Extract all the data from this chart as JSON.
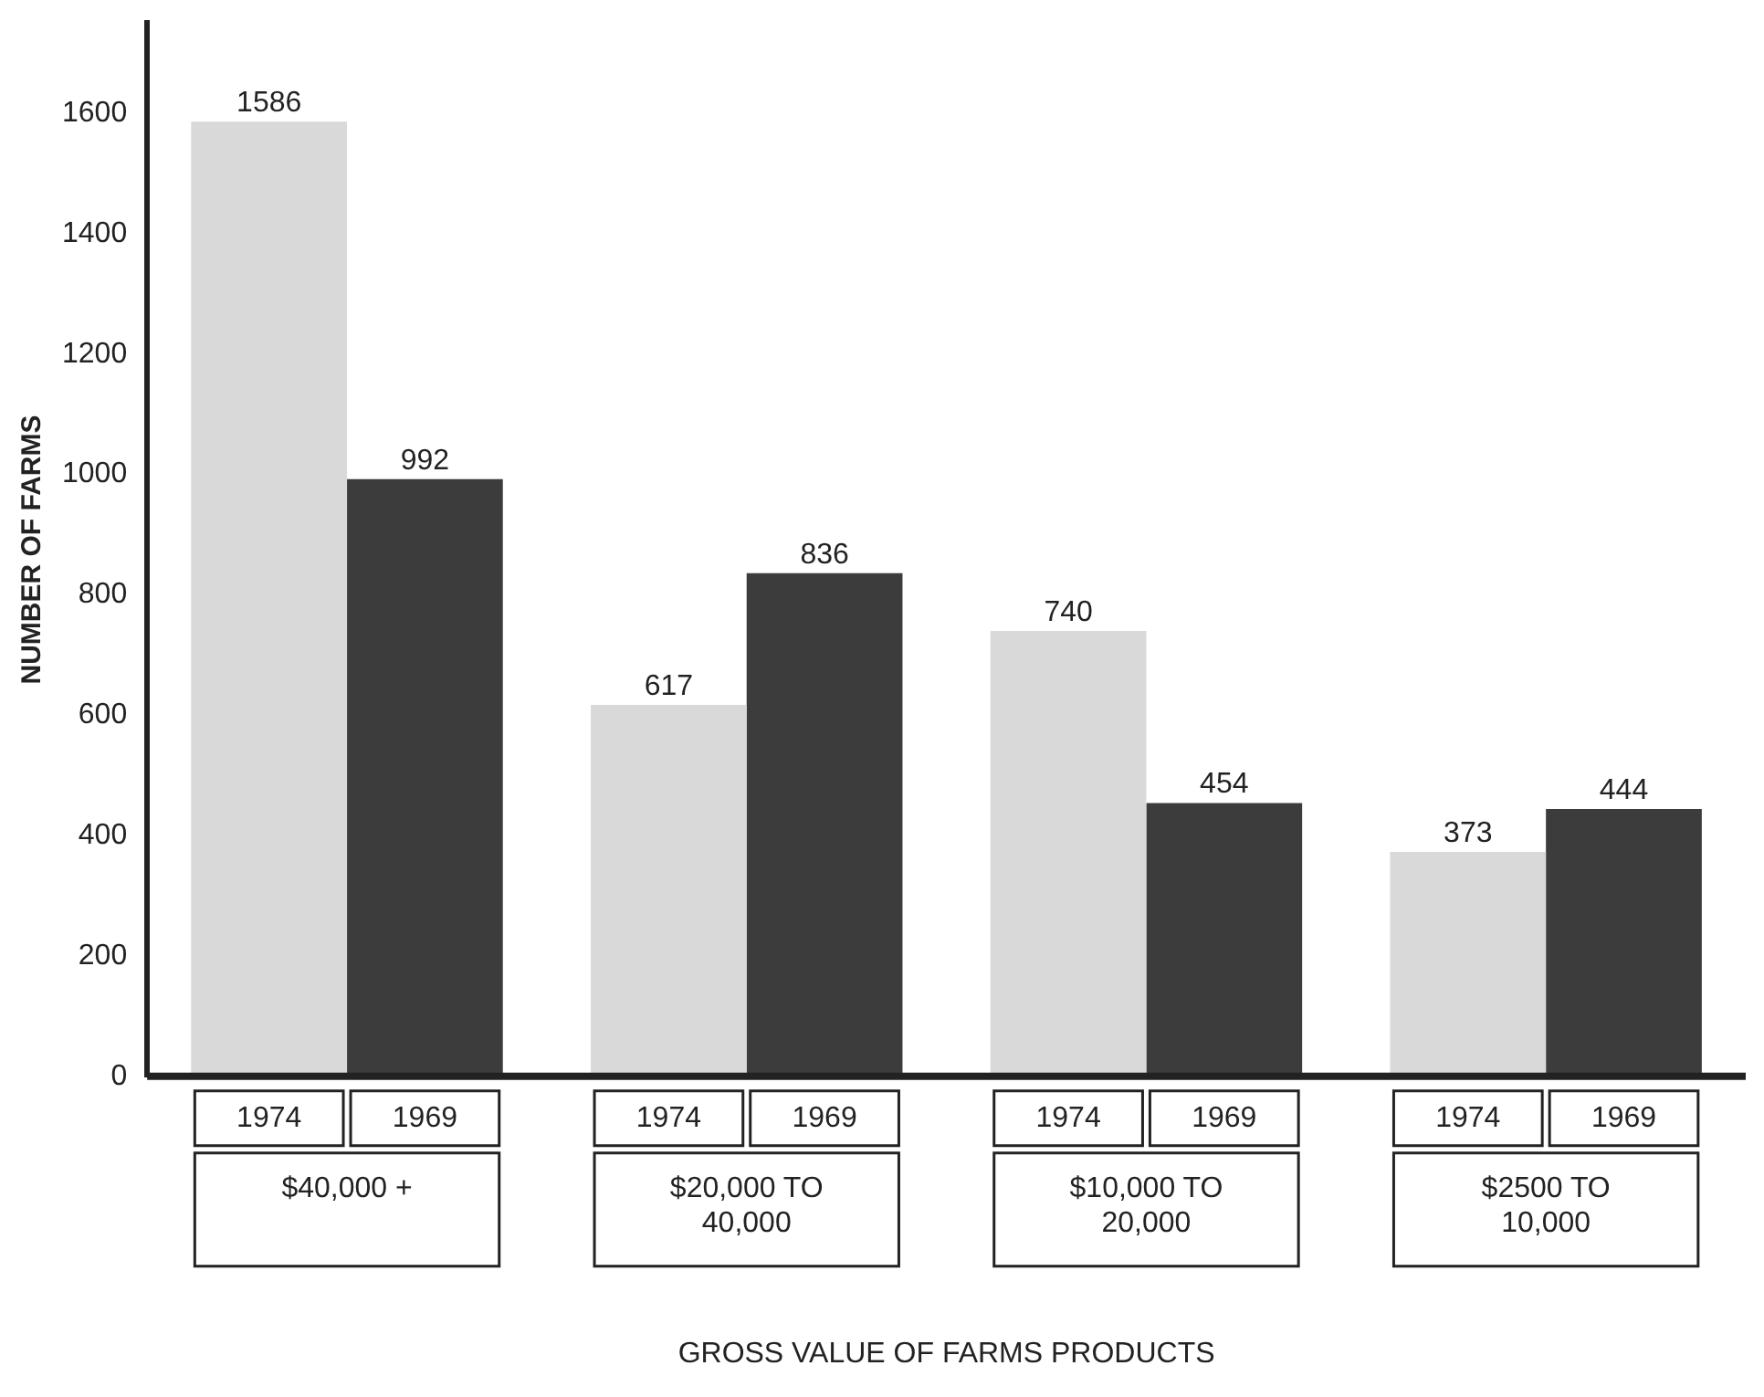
{
  "chart_data": {
    "type": "bar",
    "xlabel": "GROSS VALUE OF FARMS PRODUCTS",
    "ylabel": "NUMBER OF FARMS",
    "categories": [
      "$40,000 +",
      "$20,000 TO 40,000",
      "$10,000 TO 20,000",
      "$2500 TO 10,000"
    ],
    "series": [
      {
        "name": "1974",
        "color": "#d9d9d9",
        "values": [
          1586,
          617,
          740,
          373
        ]
      },
      {
        "name": "1969",
        "color": "#3c3c3c",
        "values": [
          992,
          836,
          454,
          444
        ]
      }
    ],
    "ylim": [
      0,
      1750
    ],
    "yticks": [
      0,
      200,
      400,
      600,
      800,
      1000,
      1200,
      1400,
      1600
    ],
    "grid": false,
    "legend": false,
    "data_labels": true
  }
}
